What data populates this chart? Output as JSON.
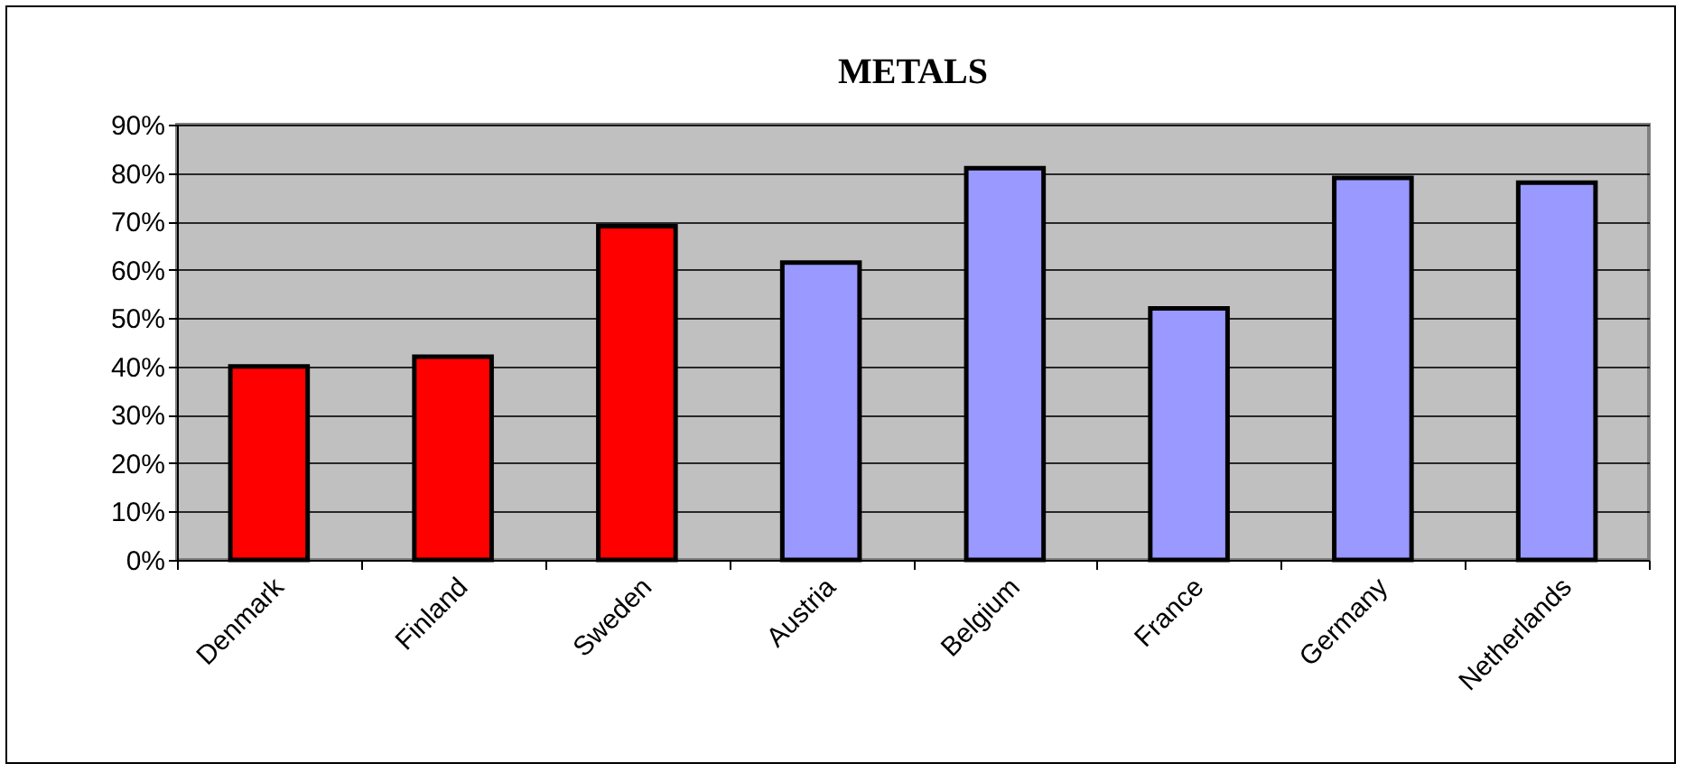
{
  "chart_data": {
    "type": "bar",
    "title": "METALS",
    "categories": [
      "Denmark",
      "Finland",
      "Sweden",
      "Austria",
      "Belgium",
      "France",
      "Germany",
      "Netherlands"
    ],
    "values": [
      40,
      42,
      69,
      61.5,
      81,
      52,
      79,
      78
    ],
    "colors": [
      "#ff0000",
      "#ff0000",
      "#ff0000",
      "#9999ff",
      "#9999ff",
      "#9999ff",
      "#9999ff",
      "#9999ff"
    ],
    "ylim": [
      0,
      90
    ],
    "yticks": [
      {
        "value": 0,
        "label": "0%"
      },
      {
        "value": 10,
        "label": "10%"
      },
      {
        "value": 20,
        "label": "20%"
      },
      {
        "value": 30,
        "label": "30%"
      },
      {
        "value": 40,
        "label": "40%"
      },
      {
        "value": 50,
        "label": "50%"
      },
      {
        "value": 60,
        "label": "60%"
      },
      {
        "value": 70,
        "label": "70%"
      },
      {
        "value": 80,
        "label": "80%"
      },
      {
        "value": 90,
        "label": "90%"
      }
    ],
    "grid": true
  }
}
